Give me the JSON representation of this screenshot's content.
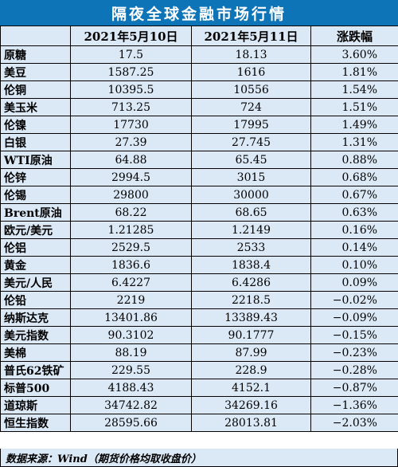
{
  "title": "隔夜全球金融市场行情",
  "headers": [
    "",
    "2021年5月10日",
    "2021年5月11日",
    "涨跌幅"
  ],
  "rows": [
    {
      "name": "原糖",
      "d1": "17.5",
      "d2": "18.13",
      "chg": "3.60%"
    },
    {
      "name": "美豆",
      "d1": "1587.25",
      "d2": "1616",
      "chg": "1.81%"
    },
    {
      "name": "伦铜",
      "d1": "10395.5",
      "d2": "10556",
      "chg": "1.54%"
    },
    {
      "name": "美玉米",
      "d1": "713.25",
      "d2": "724",
      "chg": "1.51%"
    },
    {
      "name": "伦镍",
      "d1": "17730",
      "d2": "17995",
      "chg": "1.49%"
    },
    {
      "name": "白银",
      "d1": "27.39",
      "d2": "27.745",
      "chg": "1.31%"
    },
    {
      "name": "WTI原油",
      "d1": "64.88",
      "d2": "65.45",
      "chg": "0.88%"
    },
    {
      "name": "伦锌",
      "d1": "2994.5",
      "d2": "3015",
      "chg": "0.68%"
    },
    {
      "name": "伦锡",
      "d1": "29800",
      "d2": "30000",
      "chg": "0.67%"
    },
    {
      "name": "Brent原油",
      "d1": "68.22",
      "d2": "68.65",
      "chg": "0.63%"
    },
    {
      "name": "欧元/美元",
      "d1": "1.21285",
      "d2": "1.2149",
      "chg": "0.16%"
    },
    {
      "name": "伦铝",
      "d1": "2529.5",
      "d2": "2533",
      "chg": "0.14%"
    },
    {
      "name": "黄金",
      "d1": "1836.6",
      "d2": "1838.4",
      "chg": "0.10%"
    },
    {
      "name": "美元/人民",
      "d1": "6.4227",
      "d2": "6.4286",
      "chg": "0.09%"
    },
    {
      "name": "伦铅",
      "d1": "2219",
      "d2": "2218.5",
      "chg": "−0.02%"
    },
    {
      "name": "纳斯达克",
      "d1": "13401.86",
      "d2": "13389.43",
      "chg": "−0.09%"
    },
    {
      "name": "美元指数",
      "d1": "90.3102",
      "d2": "90.1777",
      "chg": "−0.15%"
    },
    {
      "name": "美棉",
      "d1": "88.19",
      "d2": "87.99",
      "chg": "−0.23%"
    },
    {
      "name": "普氏62铁矿",
      "d1": "229.55",
      "d2": "228.9",
      "chg": "−0.28%"
    },
    {
      "name": "标普500",
      "d1": "4188.43",
      "d2": "4152.1",
      "chg": "−0.87%"
    },
    {
      "name": "道琼斯",
      "d1": "34742.82",
      "d2": "34269.16",
      "chg": "−1.36%"
    },
    {
      "name": "恒生指数",
      "d1": "28595.66",
      "d2": "28013.81",
      "chg": "−2.03%"
    }
  ],
  "source": "数据来源：Wind（期货价格均取收盘价）"
}
